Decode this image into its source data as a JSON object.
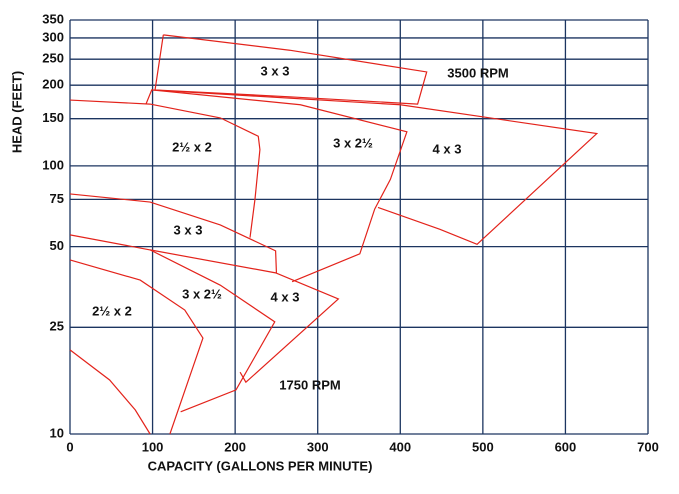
{
  "chart_data": {
    "type": "line",
    "xlabel": "CAPACITY (GALLONS PER MINUTE)",
    "ylabel": "HEAD (FEET)",
    "xlim": [
      0,
      700
    ],
    "xticks": [
      0,
      100,
      200,
      300,
      400,
      500,
      600,
      700
    ],
    "ylim": [
      10,
      350
    ],
    "yticks": [
      10,
      25,
      50,
      75,
      100,
      150,
      200,
      250,
      300,
      350
    ],
    "log_y": true,
    "grid": true,
    "grid_color": "#1c3560",
    "annotations": [
      "3500 RPM",
      "1750 RPM"
    ],
    "series": [
      {
        "name": "3 x 3",
        "color": "#e3231b",
        "x": [
          113,
          266,
          432,
          421,
          266,
          103,
          113
        ],
        "values": [
          308,
          270,
          224,
          170,
          181,
          192,
          308
        ]
      },
      {
        "name": "2½ x 2",
        "color": "#e3231b",
        "x": [
          0,
          97,
          182,
          228,
          230,
          224,
          218
        ],
        "values": [
          176,
          170,
          151,
          129,
          115,
          75,
          54
        ]
      },
      {
        "name": "3 x 2½",
        "color": "#e3231b",
        "x": [
          92,
          99,
          279,
          408,
          388,
          369,
          351,
          269
        ],
        "values": [
          170,
          192,
          169,
          134,
          89,
          69,
          47,
          37
        ]
      },
      {
        "name": "4 x 3",
        "color": "#e3231b",
        "x": [
          99,
          400,
          638,
          493,
          448,
          373
        ],
        "values": [
          192,
          169,
          132,
          51,
          58,
          70
        ]
      },
      {
        "name": "3 x 3",
        "color": "#e3231b",
        "x": [
          0,
          97,
          182,
          249,
          250
        ],
        "values": [
          78.6,
          73.3,
          60.2,
          48.2,
          39.9
        ]
      },
      {
        "name": "3 x 2½",
        "color": "#e3231b",
        "x": [
          0,
          97,
          182,
          248,
          201,
          134
        ],
        "values": [
          55.3,
          48.6,
          35.9,
          26.2,
          14.6,
          12.1
        ]
      },
      {
        "name": "4 x 3",
        "color": "#e3231b",
        "x": [
          97,
          249,
          325,
          213,
          206
        ],
        "values": [
          48.6,
          39.9,
          31.9,
          15.6,
          17.0
        ]
      },
      {
        "name": "2½ x 2",
        "color": "#e3231b",
        "x": [
          0,
          85,
          139,
          161,
          121
        ],
        "values": [
          44.6,
          37.5,
          29.0,
          22.8,
          10
        ]
      },
      {
        "color": "#e3231b",
        "x": [
          0,
          48,
          79,
          97
        ],
        "values": [
          20.6,
          15.9,
          12.3,
          10
        ]
      }
    ]
  }
}
